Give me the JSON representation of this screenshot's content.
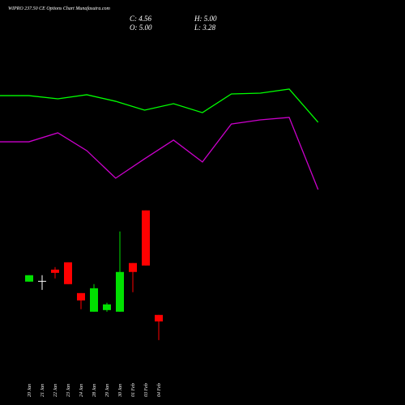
{
  "header": {
    "title": "WIPRO 237.50 CE Options Chart Munafasutra.com",
    "close": "C: 4.56",
    "high": "H: 5.00",
    "open": "O: 5.00",
    "low": "L: 3.28"
  },
  "chart_data": [
    {
      "type": "line",
      "categories": [
        null,
        null,
        null,
        null,
        null,
        null,
        null,
        null,
        null,
        null,
        null,
        null
      ],
      "ylim": [
        0,
        100
      ],
      "series": [
        {
          "color": "#00ff00",
          "values": [
            87.1,
            87.1,
            84.3,
            87.9,
            82.1,
            74.3,
            80,
            72.1,
            88.6,
            89.3,
            92.9,
            63.6
          ]
        },
        {
          "color": "#cc00cc",
          "values": [
            46.4,
            46.4,
            54.3,
            38.6,
            14.3,
            31.4,
            47.9,
            28.6,
            62.1,
            65.7,
            67.9,
            4.3
          ]
        }
      ]
    },
    {
      "type": "candlestick",
      "categories": [
        "20 Jan",
        "21 Jan",
        "22 Jan",
        "23 Jan",
        "24 Jan",
        "28 Jan",
        "29 Jan",
        "30 Jan",
        "01 Feb",
        "03 Feb",
        "04 Feb"
      ],
      "open": [
        7.27,
        7.32,
        8.09,
        8.59,
        6.49,
        5.22,
        5.33,
        5.22,
        8.54,
        12.13,
        5.0
      ],
      "high": [
        7.71,
        7.71,
        8.26,
        8.59,
        6.49,
        7.1,
        5.83,
        10.69,
        8.54,
        12.13,
        5.0
      ],
      "low": [
        7.27,
        6.71,
        7.49,
        7.1,
        5.39,
        5.22,
        5.22,
        5.22,
        6.55,
        8.37,
        3.28
      ],
      "close": [
        7.71,
        7.32,
        7.87,
        7.1,
        5.99,
        6.82,
        5.72,
        7.93,
        7.93,
        8.37,
        4.56
      ],
      "up_color": "#00e000",
      "down_color": "#ff0000",
      "flat_color": "#ffffff",
      "ylim": [
        3,
        13
      ]
    }
  ]
}
